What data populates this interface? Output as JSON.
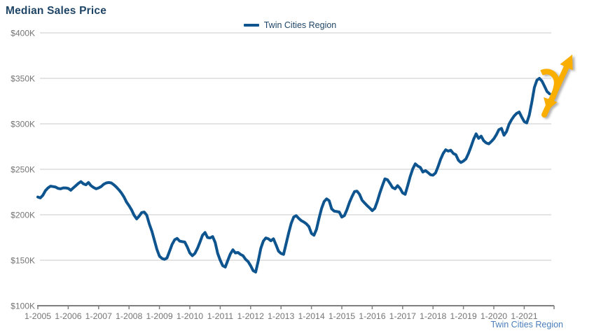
{
  "header": {
    "title": "Median Sales Price"
  },
  "legend": {
    "label": "Twin Cities Region",
    "swatch_icon": "line-swatch"
  },
  "footer": {
    "label": "Twin Cities Region"
  },
  "colors": {
    "line": "#0E548F",
    "title_text": "#1F4566",
    "legend_text": "#1F4566",
    "axis_text": "#757575",
    "gridline": "#C9C9C9",
    "axis_line": "#7F7F7F",
    "arrow": "#F9AE00",
    "source_text": "#4A7EBB"
  },
  "chart_data": {
    "type": "line",
    "title": "Median Sales Price",
    "xlabel": "",
    "ylabel": "",
    "grid": true,
    "legend_position": "top-center",
    "ylim_k_usd": [
      100,
      400
    ],
    "y_tick_values_k": [
      100,
      150,
      200,
      250,
      300,
      350,
      400
    ],
    "y_tick_labels": [
      "$100K",
      "$150K",
      "$200K",
      "$250K",
      "$300K",
      "$350K",
      "$400K"
    ],
    "x_tick_labels": [
      "1-2005",
      "1-2006",
      "1-2007",
      "1-2008",
      "1-2009",
      "1-2010",
      "1-2011",
      "1-2012",
      "1-2013",
      "1-2014",
      "1-2015",
      "1-2016",
      "1-2017",
      "1-2018",
      "1-2019",
      "1-2020",
      "1-2021"
    ],
    "series": [
      {
        "name": "Twin Cities Region",
        "start_month": "2005-01",
        "frequency": "monthly",
        "values_k_usd": [
          219.5,
          218.5,
          221.5,
          226.5,
          229.5,
          231.5,
          231,
          230.5,
          229,
          228.5,
          229.5,
          229.5,
          229,
          227,
          229.5,
          232,
          234.5,
          236.5,
          234,
          233,
          235.5,
          232,
          230,
          228.5,
          229.5,
          231,
          233.5,
          235,
          235.5,
          235,
          233,
          230.5,
          227.5,
          224,
          219.5,
          214,
          210,
          205.5,
          199.5,
          195.5,
          198.5,
          202.5,
          203,
          199.5,
          190,
          182,
          172,
          162,
          154.5,
          152,
          151,
          152.5,
          160,
          167.5,
          172.5,
          174,
          171,
          170.5,
          170,
          164.5,
          158,
          155,
          157.5,
          163,
          170,
          177.5,
          180.5,
          175,
          174.5,
          176,
          169.5,
          157.5,
          150,
          144,
          142.5,
          150,
          157,
          161.5,
          158,
          158.5,
          156.5,
          155,
          151,
          148.5,
          144,
          138.5,
          137,
          149,
          163,
          171,
          174.5,
          173.5,
          171.5,
          173.5,
          167,
          160,
          157.5,
          156.5,
          168,
          180,
          190.5,
          197.5,
          199,
          196,
          193.5,
          192,
          190,
          187,
          179.5,
          177.5,
          184,
          196,
          207,
          214.5,
          217.5,
          215.5,
          206.5,
          204,
          203.5,
          203,
          197.5,
          199,
          205.5,
          213.5,
          220,
          225.5,
          226,
          222.5,
          216,
          213,
          210,
          207.5,
          204.5,
          207,
          214.5,
          224,
          232,
          239.5,
          238.5,
          234.5,
          230,
          228.5,
          232,
          229,
          224,
          222.5,
          232,
          242,
          250.5,
          256,
          253.5,
          252,
          247,
          248.5,
          246.5,
          244,
          243.5,
          246,
          253,
          261,
          267.5,
          271.5,
          270,
          271,
          267.5,
          266,
          260,
          257.5,
          259,
          261.5,
          267.5,
          275,
          283,
          289,
          284,
          286.5,
          281.5,
          279,
          278,
          280.5,
          283.5,
          288,
          293.5,
          295,
          287.5,
          291.5,
          299.5,
          304.5,
          308.5,
          311.5,
          313,
          307.5,
          302.5,
          301,
          309.5,
          324,
          340,
          348,
          350,
          347,
          341.5,
          335.5,
          333
        ]
      }
    ],
    "annotations": [
      {
        "id": "recent-dip-arrow",
        "shape": "curved-arrow-down",
        "color": "#F9AE00"
      },
      {
        "id": "upward-trend-arrow",
        "shape": "straight-arrow-up",
        "color": "#F9AE00"
      }
    ]
  }
}
